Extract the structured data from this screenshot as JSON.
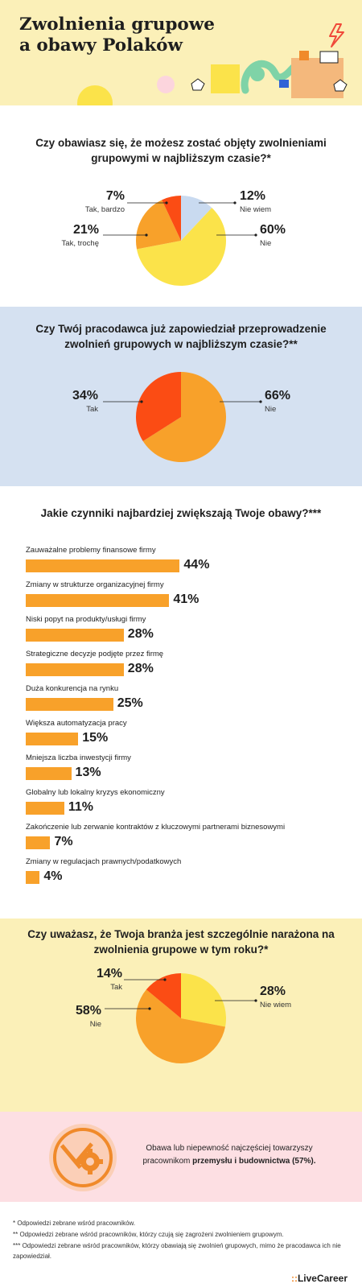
{
  "header": {
    "title_line1": "Zwolnienia grupowe",
    "title_line2": "a obawy Polaków"
  },
  "colors": {
    "yellow": "#fbe34a",
    "orange": "#f8a12a",
    "red": "#fb4c14",
    "light_blue": "#c9daf0",
    "header_bg": "#fbf0b8",
    "blue_bg": "#d5e1f1",
    "pink_bg": "#fddfe3"
  },
  "chart_data": [
    {
      "type": "pie",
      "title": "Czy obawiasz się, że możesz zostać objęty zwolnieniami grupowymi w najbliższym czasie?*",
      "slices": [
        {
          "label": "Nie wiem",
          "value": 12,
          "display": "12%",
          "color": "#c9daf0"
        },
        {
          "label": "Nie",
          "value": 60,
          "display": "60%",
          "color": "#fbe34a"
        },
        {
          "label": "Tak, trochę",
          "value": 21,
          "display": "21%",
          "color": "#f8a12a"
        },
        {
          "label": "Tak, bardzo",
          "value": 7,
          "display": "7%",
          "color": "#fb4c14"
        }
      ]
    },
    {
      "type": "pie",
      "title": "Czy Twój pracodawca już zapowiedział przeprowadzenie zwolnień grupowych w najbliższym czasie?**",
      "slices": [
        {
          "label": "Nie",
          "value": 66,
          "display": "66%",
          "color": "#f8a12a"
        },
        {
          "label": "Tak",
          "value": 34,
          "display": "34%",
          "color": "#fb4c14"
        }
      ]
    },
    {
      "type": "bar",
      "title": "Jakie czynniki najbardziej zwiększają Twoje obawy?***",
      "categories": [
        "Zauważalne problemy finansowe firmy",
        "Zmiany w strukturze organizacyjnej firmy",
        "Niski popyt na produkty/usługi firmy",
        "Strategiczne decyzje podjęte przez firmę",
        "Duża konkurencja na rynku",
        "Większa automatyzacja pracy",
        "Mniejsza liczba inwestycji firmy",
        "Globalny lub lokalny kryzys ekonomiczny",
        "Zakończenie lub zerwanie kontraktów z kluczowymi partnerami biznesowymi",
        "Zmiany w regulacjach prawnych/podatkowych"
      ],
      "values": [
        44,
        41,
        28,
        28,
        25,
        15,
        13,
        11,
        7,
        4
      ],
      "value_labels": [
        "44%",
        "41%",
        "28%",
        "28%",
        "25%",
        "15%",
        "13%",
        "11%",
        "7%",
        "4%"
      ],
      "color": "#f8a12a"
    },
    {
      "type": "pie",
      "title": "Czy uważasz, że Twoja branża jest szczególnie narażona na zwolnienia grupowe w tym roku?*",
      "slices": [
        {
          "label": "Nie wiem",
          "value": 28,
          "display": "28%",
          "color": "#fbe34a"
        },
        {
          "label": "Nie",
          "value": 58,
          "display": "58%",
          "color": "#f8a12a"
        },
        {
          "label": "Tak",
          "value": 14,
          "display": "14%",
          "color": "#fb4c14"
        }
      ]
    }
  ],
  "note": {
    "text_before": "Obawa lub niepewność najczęściej towarzyszy pracownikom ",
    "text_bold": "przemysłu i budownictwa (57%)."
  },
  "footnotes": [
    "* Odpowiedzi zebrane wśród pracowników.",
    "** Odpowiedzi zebrane wśród pracowników, którzy czują się zagrożeni zwolnieniem grupowym.",
    "*** Odpowiedzi zebrane wśród pracowników, którzy obawiają się zwolnień grupowych, mimo że pracodawca ich nie zapowiedział."
  ],
  "logo": {
    "dots": "::",
    "name": "LiveCareer"
  },
  "icons": [
    "lightning-icon",
    "tools-gear-icon"
  ]
}
